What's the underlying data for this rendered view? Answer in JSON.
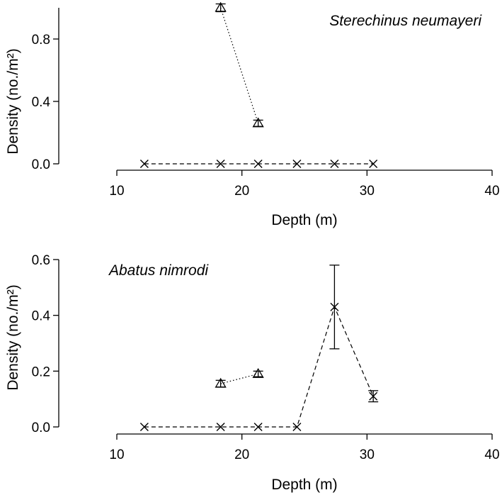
{
  "chart_data": [
    {
      "type": "line",
      "title": "Sterechinus neumayeri",
      "xlabel": "Depth (m)",
      "ylabel": "Density (no./m²)",
      "xlim": [
        10,
        40
      ],
      "ylim": [
        0,
        1.0
      ],
      "x_ticks": [
        "10",
        "20",
        "30",
        "40"
      ],
      "y_ticks": [
        "0.0",
        "0.4",
        "0.8"
      ],
      "series": [
        {
          "marker": "triangle",
          "linestyle": "dotted",
          "points": [
            {
              "x": 18.3,
              "y": 1.0,
              "err": 0.025
            },
            {
              "x": 21.3,
              "y": 0.26,
              "err": 0.02
            }
          ]
        },
        {
          "marker": "x",
          "linestyle": "dashed",
          "points": [
            {
              "x": 12.2,
              "y": 0.0,
              "err": 0
            },
            {
              "x": 18.3,
              "y": 0.0,
              "err": 0
            },
            {
              "x": 21.3,
              "y": 0.0,
              "err": 0
            },
            {
              "x": 24.4,
              "y": 0.0,
              "err": 0
            },
            {
              "x": 27.4,
              "y": 0.0,
              "err": 0
            },
            {
              "x": 30.5,
              "y": 0.0,
              "err": 0
            }
          ]
        }
      ]
    },
    {
      "type": "line",
      "title": "Abatus nimrodi",
      "xlabel": "Depth (m)",
      "ylabel": "Density (no./m²)",
      "xlim": [
        10,
        40
      ],
      "ylim": [
        0,
        0.6
      ],
      "x_ticks": [
        "10",
        "20",
        "30",
        "40"
      ],
      "y_ticks": [
        "0.0",
        "0.2",
        "0.4",
        "0.6"
      ],
      "series": [
        {
          "marker": "triangle",
          "linestyle": "dotted",
          "points": [
            {
              "x": 18.3,
              "y": 0.155,
              "err": 0.012
            },
            {
              "x": 21.3,
              "y": 0.19,
              "err": 0.01
            }
          ]
        },
        {
          "marker": "x",
          "linestyle": "dashed",
          "points": [
            {
              "x": 12.2,
              "y": 0.0,
              "err": 0
            },
            {
              "x": 18.3,
              "y": 0.0,
              "err": 0
            },
            {
              "x": 21.3,
              "y": 0.0,
              "err": 0
            },
            {
              "x": 24.4,
              "y": 0.0,
              "err": 0
            },
            {
              "x": 27.4,
              "y": 0.43,
              "err": 0.15
            },
            {
              "x": 30.5,
              "y": 0.11,
              "err": 0.02
            }
          ]
        }
      ]
    }
  ]
}
